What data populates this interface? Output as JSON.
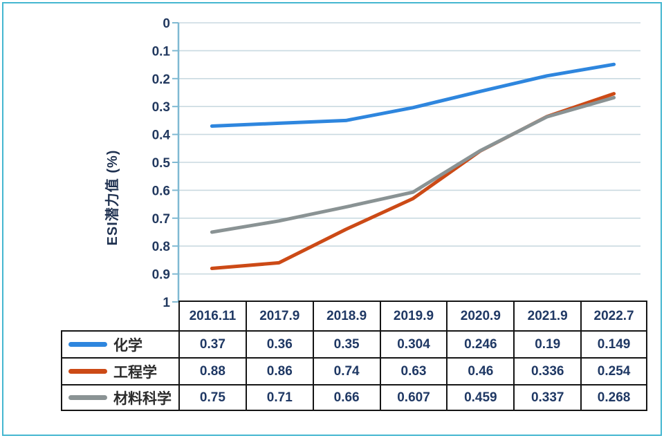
{
  "frame": {
    "border_color": "#43B6D0"
  },
  "chart_data": {
    "type": "line",
    "title": "",
    "xlabel": "",
    "ylabel": "ESI潜力值 (%)",
    "categories": [
      "2016.11",
      "2017.9",
      "2018.9",
      "2019.9",
      "2020.9",
      "2021.9",
      "2022.7"
    ],
    "series": [
      {
        "name": "化学",
        "color": "#2E86DE",
        "values": [
          0.37,
          0.36,
          0.35,
          0.304,
          0.246,
          0.19,
          0.149
        ]
      },
      {
        "name": "工程学",
        "color": "#CC4A16",
        "values": [
          0.88,
          0.86,
          0.74,
          0.63,
          0.46,
          0.336,
          0.254
        ]
      },
      {
        "name": "材料科学",
        "color": "#8A9394",
        "values": [
          0.75,
          0.71,
          0.66,
          0.607,
          0.459,
          0.337,
          0.268
        ]
      }
    ],
    "ylim": [
      0,
      1
    ],
    "y_axis_inverted_labels": true,
    "yticks": [
      "0",
      "0.1",
      "0.2",
      "0.3",
      "0.4",
      "0.5",
      "0.6",
      "0.7",
      "0.8",
      "0.9",
      "1"
    ],
    "grid": "horizontal",
    "legend_position": "table-left",
    "colors": {
      "gridline": "#C9D9E0",
      "axis_line": "#7FB9D2",
      "table_border": "#141414",
      "value_text": "#1F3864",
      "tick_text": "#22395F",
      "legend_text": "#2B2B2B"
    }
  }
}
